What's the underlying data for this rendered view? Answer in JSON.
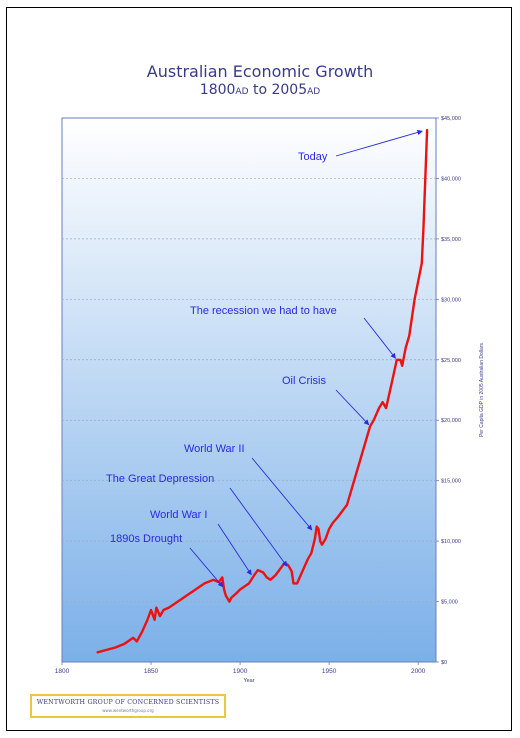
{
  "page": {
    "title": "Australian Economic Growth",
    "subtitle_start": "1800",
    "subtitle_start_era": "AD",
    "subtitle_to": "to",
    "subtitle_end": "2005",
    "subtitle_end_era": "AD"
  },
  "footer": {
    "org_name": "WENTWORTH GROUP OF CONCERNED SCIENTISTS",
    "url": "www.wentworthgroup.org"
  },
  "colors": {
    "line": "#ee1111",
    "annotation": "#2a2ae0",
    "axis_text": "#3a3a8c",
    "grad_top": "#ffffff",
    "grad_bottom": "#7bb0e8"
  },
  "chart_data": {
    "type": "line",
    "title": "Australian Economic Growth",
    "subtitle": "1800AD to 2005AD",
    "xlabel": "Year",
    "ylabel": "Per Capita GDP in 2005 Australian Dollars",
    "xlim": [
      1800,
      2010
    ],
    "ylim": [
      0,
      45000
    ],
    "x_ticks": [
      1800,
      1850,
      1900,
      1950,
      2000
    ],
    "y_ticks": [
      0,
      5000,
      10000,
      15000,
      20000,
      25000,
      30000,
      35000,
      40000,
      45000
    ],
    "y_tick_labels": [
      "$0",
      "$5,000",
      "$10,000",
      "$15,000",
      "$20,000",
      "$25,000",
      "$30,000",
      "$35,000",
      "$40,000",
      "$45,000"
    ],
    "y_axis_side": "right",
    "grid": true,
    "series": [
      {
        "x": [
          1820,
          1825,
          1830,
          1835,
          1840,
          1842,
          1845,
          1848,
          1850,
          1852,
          1853,
          1855,
          1857,
          1860,
          1865,
          1870,
          1875,
          1880,
          1885,
          1888,
          1890,
          1891,
          1892,
          1894,
          1895,
          1898,
          1900,
          1905,
          1908,
          1910,
          1913,
          1915,
          1917,
          1920,
          1925,
          1927,
          1929,
          1930,
          1932,
          1935,
          1938,
          1940,
          1942,
          1943,
          1944,
          1945,
          1946,
          1948,
          1950,
          1952,
          1955,
          1960,
          1965,
          1970,
          1973,
          1975,
          1978,
          1980,
          1982,
          1985,
          1988,
          1990,
          1991,
          1993,
          1995,
          1998,
          2000,
          2002,
          2003,
          2004,
          2005
        ],
        "values": [
          800,
          1000,
          1200,
          1500,
          2000,
          1700,
          2500,
          3500,
          4300,
          3500,
          4500,
          3800,
          4300,
          4500,
          5000,
          5500,
          6000,
          6500,
          6800,
          6600,
          7000,
          6000,
          5500,
          5000,
          5300,
          5700,
          6000,
          6500,
          7200,
          7600,
          7400,
          7000,
          6800,
          7200,
          8200,
          8000,
          7500,
          6500,
          6500,
          7500,
          8500,
          9000,
          10200,
          11200,
          11000,
          10000,
          9700,
          10200,
          11000,
          11500,
          12000,
          13000,
          15500,
          18000,
          19500,
          20000,
          21000,
          21500,
          21000,
          23000,
          25000,
          25000,
          24500,
          26000,
          27000,
          30000,
          31500,
          33000,
          36000,
          40000,
          44000
        ]
      }
    ],
    "annotations": [
      {
        "text": "Today",
        "x": 2004,
        "y": 44000
      },
      {
        "text": "The recession we had to have",
        "x": 1989,
        "y": 25200
      },
      {
        "text": "Oil Crisis",
        "x": 1974,
        "y": 19700
      },
      {
        "text": "World War II",
        "x": 1942,
        "y": 11000
      },
      {
        "text": "The Great Depression",
        "x": 1928,
        "y": 8000
      },
      {
        "text": "World War I",
        "x": 1908,
        "y": 7300
      },
      {
        "text": "1890s Drought",
        "x": 1892,
        "y": 6300
      }
    ]
  }
}
